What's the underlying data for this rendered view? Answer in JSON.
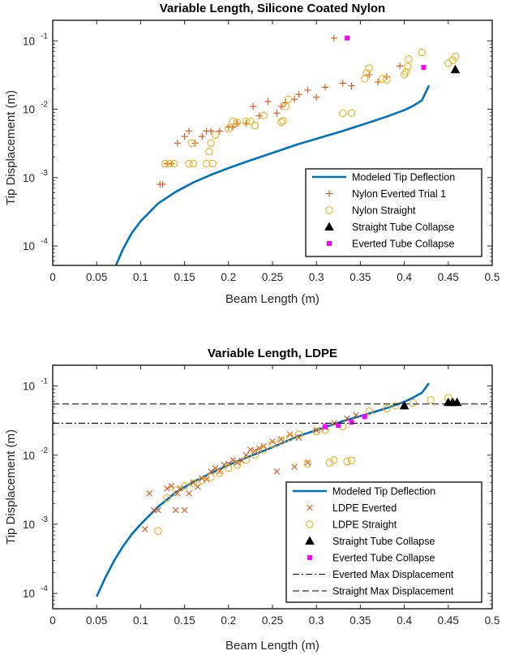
{
  "colors": {
    "model": "#0072BD",
    "nylon_everted": "#D95319",
    "straight": "#EDB120",
    "collapse_straight": "#000000",
    "collapse_everted": "#FF00FF",
    "axes": "#262626"
  },
  "chart_data": [
    {
      "type": "scatter",
      "title": "Variable Length, Silicone Coated Nylon",
      "xlabel": "Beam Length (m)",
      "ylabel": "Tip Displacement (m)",
      "xscale": "linear",
      "yscale": "log",
      "xlim": [
        0,
        0.5
      ],
      "ylim": [
        5.2e-05,
        0.2
      ],
      "grid": false,
      "legend_position": "bottom-right",
      "x_ticks": [
        0,
        0.05,
        0.1,
        0.15,
        0.2,
        0.25,
        0.3,
        0.35,
        0.4,
        0.45,
        0.5
      ],
      "x_tick_labels": [
        "0",
        "0.05",
        "0.1",
        "0.15",
        "0.2",
        "0.25",
        "0.3",
        "0.35",
        "0.4",
        "0.45",
        "0.5"
      ],
      "y_ticks": [
        0.0001,
        0.001,
        0.01,
        0.1
      ],
      "y_tick_labels": [
        {
          "base": "10",
          "exp": "-4"
        },
        {
          "base": "10",
          "exp": "-3"
        },
        {
          "base": "10",
          "exp": "-2"
        },
        {
          "base": "10",
          "exp": "-1"
        }
      ],
      "series": [
        {
          "name": "Modeled Tip Deflection",
          "kind": "line",
          "color": "model",
          "x": [
            0.072,
            0.08,
            0.09,
            0.1,
            0.12,
            0.14,
            0.16,
            0.18,
            0.2,
            0.22,
            0.25,
            0.28,
            0.3,
            0.33,
            0.36,
            0.38,
            0.4,
            0.41,
            0.42,
            0.428
          ],
          "y": [
            5.2e-05,
            9e-05,
            0.000155,
            0.00023,
            0.00042,
            0.00062,
            0.00085,
            0.0011,
            0.00138,
            0.0017,
            0.0023,
            0.0031,
            0.0037,
            0.0048,
            0.0064,
            0.0078,
            0.0097,
            0.0112,
            0.0135,
            0.0222
          ]
        },
        {
          "name": "Nylon Everted Trial 1",
          "kind": "plus",
          "color": "nylon_everted",
          "x": [
            0.122,
            0.125,
            0.13,
            0.135,
            0.142,
            0.15,
            0.155,
            0.162,
            0.17,
            0.175,
            0.18,
            0.19,
            0.2,
            0.205,
            0.21,
            0.22,
            0.228,
            0.235,
            0.245,
            0.255,
            0.26,
            0.265,
            0.275,
            0.28,
            0.29,
            0.3,
            0.31,
            0.33,
            0.34,
            0.36,
            0.37,
            0.38,
            0.395,
            0.32
          ],
          "y": [
            0.0008,
            0.0008,
            0.0016,
            0.0016,
            0.0032,
            0.004,
            0.0048,
            0.0032,
            0.004,
            0.0048,
            0.0048,
            0.0048,
            0.0055,
            0.0055,
            0.0062,
            0.0062,
            0.011,
            0.008,
            0.013,
            0.0088,
            0.011,
            0.0125,
            0.014,
            0.0165,
            0.019,
            0.015,
            0.021,
            0.024,
            0.022,
            0.032,
            0.025,
            0.03,
            0.043,
            0.11
          ]
        },
        {
          "name": "Nylon Straight",
          "kind": "circle",
          "color": "straight",
          "x": [
            0.128,
            0.133,
            0.138,
            0.155,
            0.158,
            0.16,
            0.175,
            0.178,
            0.18,
            0.182,
            0.185,
            0.2,
            0.205,
            0.21,
            0.22,
            0.225,
            0.23,
            0.24,
            0.26,
            0.262,
            0.265,
            0.268,
            0.33,
            0.34,
            0.355,
            0.357,
            0.36,
            0.375,
            0.38,
            0.4,
            0.402,
            0.404,
            0.405,
            0.42,
            0.45,
            0.455,
            0.458
          ],
          "y": [
            0.0016,
            0.0016,
            0.0016,
            0.0016,
            0.0032,
            0.0016,
            0.0016,
            0.0024,
            0.0032,
            0.0016,
            0.0042,
            0.0052,
            0.0066,
            0.0064,
            0.0066,
            0.0066,
            0.0058,
            0.0081,
            0.0065,
            0.0068,
            0.011,
            0.014,
            0.0087,
            0.0088,
            0.028,
            0.034,
            0.04,
            0.028,
            0.027,
            0.032,
            0.035,
            0.042,
            0.054,
            0.068,
            0.047,
            0.052,
            0.059
          ]
        },
        {
          "name": "Straight Tube Collapse",
          "kind": "triangle",
          "color": "collapse_straight",
          "x": [
            0.458
          ],
          "y": [
            0.038
          ]
        },
        {
          "name": "Everted Tube Collapse",
          "kind": "square",
          "color": "collapse_everted",
          "x": [
            0.335,
            0.422
          ],
          "y": [
            0.11,
            0.041
          ]
        }
      ]
    },
    {
      "type": "scatter",
      "title": "Variable Length, LDPE",
      "xlabel": "Beam Length (m)",
      "ylabel": "Tip Displacement (m)",
      "xscale": "linear",
      "yscale": "log",
      "xlim": [
        0,
        0.5
      ],
      "ylim": [
        6e-05,
        0.2
      ],
      "grid": false,
      "legend_position": "bottom-right",
      "x_ticks": [
        0,
        0.05,
        0.1,
        0.15,
        0.2,
        0.25,
        0.3,
        0.35,
        0.4,
        0.45,
        0.5
      ],
      "x_tick_labels": [
        "0",
        "0.05",
        "0.1",
        "0.15",
        "0.2",
        "0.25",
        "0.3",
        "0.35",
        "0.4",
        "0.45",
        "0.5"
      ],
      "y_ticks": [
        0.0001,
        0.001,
        0.01,
        0.1
      ],
      "y_tick_labels": [
        {
          "base": "10",
          "exp": "-4"
        },
        {
          "base": "10",
          "exp": "-3"
        },
        {
          "base": "10",
          "exp": "-2"
        },
        {
          "base": "10",
          "exp": "-1"
        }
      ],
      "series": [
        {
          "name": "Modeled Tip Deflection",
          "kind": "line",
          "color": "model",
          "x": [
            0.05,
            0.06,
            0.07,
            0.08,
            0.09,
            0.1,
            0.12,
            0.14,
            0.16,
            0.18,
            0.2,
            0.22,
            0.25,
            0.28,
            0.3,
            0.33,
            0.36,
            0.38,
            0.4,
            0.41,
            0.42,
            0.428
          ],
          "y": [
            9e-05,
            0.00017,
            0.0003,
            0.00048,
            0.00072,
            0.001,
            0.0018,
            0.0029,
            0.0041,
            0.0055,
            0.0072,
            0.0092,
            0.013,
            0.019,
            0.023,
            0.031,
            0.04,
            0.048,
            0.059,
            0.068,
            0.08,
            0.11
          ]
        },
        {
          "name": "LDPE Everted",
          "kind": "x",
          "color": "nylon_everted",
          "x": [
            0.105,
            0.11,
            0.115,
            0.12,
            0.13,
            0.135,
            0.14,
            0.142,
            0.145,
            0.15,
            0.155,
            0.16,
            0.165,
            0.17,
            0.175,
            0.18,
            0.185,
            0.19,
            0.195,
            0.2,
            0.205,
            0.21,
            0.215,
            0.22,
            0.225,
            0.23,
            0.235,
            0.24,
            0.25,
            0.255,
            0.26,
            0.27,
            0.275,
            0.28,
            0.29,
            0.3,
            0.31,
            0.32,
            0.335,
            0.345
          ],
          "y": [
            0.00085,
            0.0028,
            0.0016,
            0.0016,
            0.0033,
            0.0036,
            0.0016,
            0.0028,
            0.0033,
            0.0016,
            0.0028,
            0.004,
            0.0035,
            0.0046,
            0.0045,
            0.0058,
            0.0065,
            0.0058,
            0.0072,
            0.0075,
            0.0085,
            0.0078,
            0.0083,
            0.01,
            0.012,
            0.0115,
            0.0125,
            0.0135,
            0.0158,
            0.0058,
            0.017,
            0.02,
            0.0068,
            0.018,
            0.0078,
            0.023,
            0.025,
            0.029,
            0.034,
            0.038
          ]
        },
        {
          "name": "LDPE Straight",
          "kind": "circle",
          "color": "straight",
          "x": [
            0.12,
            0.13,
            0.14,
            0.15,
            0.16,
            0.17,
            0.18,
            0.19,
            0.2,
            0.21,
            0.22,
            0.23,
            0.24,
            0.25,
            0.26,
            0.27,
            0.28,
            0.29,
            0.3,
            0.31,
            0.315,
            0.32,
            0.33,
            0.335,
            0.34,
            0.36,
            0.38,
            0.39,
            0.41,
            0.43,
            0.45
          ],
          "y": [
            0.0008,
            0.0024,
            0.0031,
            0.0036,
            0.0039,
            0.0043,
            0.0048,
            0.0055,
            0.0065,
            0.0072,
            0.0085,
            0.0102,
            0.012,
            0.0145,
            0.016,
            0.018,
            0.02,
            0.0075,
            0.022,
            0.023,
            0.0078,
            0.0085,
            0.026,
            0.0081,
            0.0084,
            0.043,
            0.047,
            0.052,
            0.057,
            0.063,
            0.068
          ]
        },
        {
          "name": "Straight Tube Collapse",
          "kind": "triangle",
          "color": "collapse_straight",
          "x": [
            0.4,
            0.45,
            0.455,
            0.46
          ],
          "y": [
            0.052,
            0.058,
            0.058,
            0.058
          ]
        },
        {
          "name": "Everted Tube Collapse",
          "kind": "square",
          "color": "collapse_everted",
          "x": [
            0.31,
            0.325,
            0.34,
            0.355
          ],
          "y": [
            0.026,
            0.027,
            0.03,
            0.036
          ]
        },
        {
          "name": "Everted Max Displacement",
          "kind": "hline-dashdot",
          "color": "collapse_straight",
          "y": 0.029
        },
        {
          "name": "Straight Max Displacement",
          "kind": "hline-dash",
          "color": "collapse_straight",
          "y": 0.055
        }
      ]
    }
  ]
}
